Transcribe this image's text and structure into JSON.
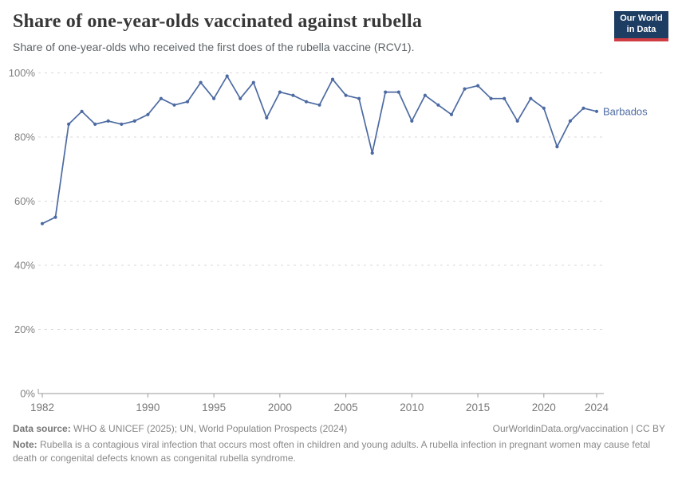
{
  "header": {
    "title": "Share of one-year-olds vaccinated against rubella",
    "subtitle": "Share of one-year-olds who received the first does of the rubella vaccine (RCV1).",
    "logo": {
      "line1": "Our World",
      "line2": "in Data"
    }
  },
  "chart_data": {
    "type": "line",
    "title": "Share of one-year-olds vaccinated against rubella",
    "xlabel": "",
    "ylabel": "",
    "xlim": [
      1982,
      2024
    ],
    "ylim": [
      0,
      100
    ],
    "xticks": [
      1982,
      1990,
      1995,
      2000,
      2005,
      2010,
      2015,
      2020,
      2024
    ],
    "yticks": [
      0,
      20,
      40,
      60,
      80,
      100
    ],
    "ytick_suffix": "%",
    "grid": "horizontal-dashed",
    "legend_position": "end-of-line",
    "series": [
      {
        "name": "Barbados",
        "color": "#4c6aa2",
        "x": [
          1982,
          1983,
          1984,
          1985,
          1986,
          1987,
          1988,
          1989,
          1990,
          1991,
          1992,
          1993,
          1994,
          1995,
          1996,
          1997,
          1998,
          1999,
          2000,
          2001,
          2002,
          2003,
          2004,
          2005,
          2006,
          2007,
          2008,
          2009,
          2010,
          2011,
          2012,
          2013,
          2014,
          2015,
          2016,
          2017,
          2018,
          2019,
          2020,
          2021,
          2022,
          2023,
          2024
        ],
        "values": [
          53,
          55,
          84,
          88,
          84,
          85,
          84,
          85,
          87,
          92,
          90,
          91,
          97,
          92,
          99,
          92,
          97,
          86,
          94,
          93,
          91,
          90,
          98,
          93,
          92,
          75,
          94,
          94,
          85,
          93,
          90,
          87,
          95,
          96,
          92,
          92,
          85,
          92,
          89,
          77,
          85,
          89,
          88
        ]
      }
    ]
  },
  "footer": {
    "datasource_label": "Data source:",
    "datasource_text": " WHO & UNICEF (2025); UN, World Population Prospects (2024)",
    "credit": "OurWorldinData.org/vaccination | CC BY",
    "note_label": "Note:",
    "note_text": " Rubella is a contagious viral infection that occurs most often in children and young adults. A rubella infection in pregnant women may cause fetal death or congenital defects known as congenital rubella syndrome."
  },
  "colors": {
    "line": "#4c6aa2",
    "grid": "#d9d9d9",
    "axis": "#999999",
    "tick_label": "#7f7f7f",
    "logo_background": "#1d3d63",
    "logo_stripe": "#cf3d43"
  }
}
